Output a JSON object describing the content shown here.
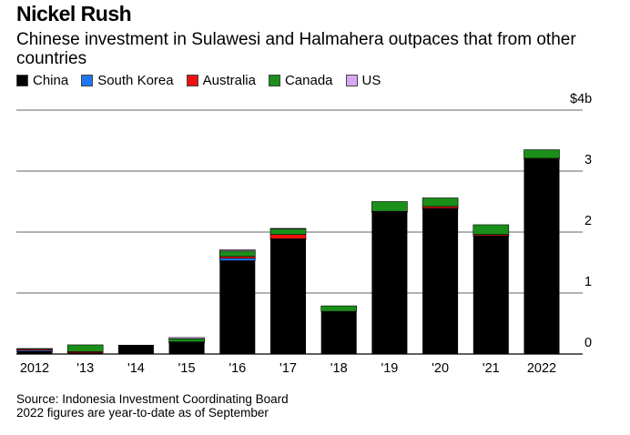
{
  "title": "Nickel Rush",
  "subtitle": "Chinese investment in Sulawesi and Halmahera outpaces that from other countries",
  "source": "Source: Indonesia Investment Coordinating Board",
  "note": "2022 figures are year-to-date as of September",
  "colors": {
    "China": "#000000",
    "South Korea": "#1f77f4",
    "Australia": "#ee1111",
    "Canada": "#1a8f1a",
    "US": "#d9a7f2"
  },
  "chart_data": {
    "type": "bar",
    "stacked": true,
    "categories": [
      "2012",
      "'13",
      "'14",
      "'15",
      "'16",
      "'17",
      "'18",
      "'19",
      "'20",
      "'21",
      "2022"
    ],
    "series": [
      {
        "name": "China",
        "values": [
          0.04,
          0.02,
          0.15,
          0.18,
          1.53,
          1.88,
          0.7,
          2.32,
          2.38,
          1.93,
          3.2
        ]
      },
      {
        "name": "South Korea",
        "values": [
          0.02,
          0.0,
          0.0,
          0.01,
          0.04,
          0.01,
          0.0,
          0.01,
          0.01,
          0.01,
          0.0
        ]
      },
      {
        "name": "Australia",
        "values": [
          0.02,
          0.02,
          0.0,
          0.01,
          0.03,
          0.07,
          0.0,
          0.01,
          0.03,
          0.02,
          0.01
        ]
      },
      {
        "name": "Canada",
        "values": [
          0.01,
          0.11,
          0.0,
          0.05,
          0.09,
          0.09,
          0.09,
          0.16,
          0.14,
          0.16,
          0.14
        ]
      },
      {
        "name": "US",
        "values": [
          0.0,
          0.0,
          0.0,
          0.02,
          0.02,
          0.01,
          0.0,
          0.0,
          0.0,
          0.0,
          0.0
        ]
      }
    ],
    "yticks": [
      0,
      1,
      2,
      3,
      4
    ],
    "ytick_labels": [
      "0",
      "1",
      "2",
      "3",
      "$4b"
    ],
    "ylim": [
      0,
      4
    ],
    "grid": true,
    "legend_position": "top-left",
    "axis_side": "right"
  }
}
